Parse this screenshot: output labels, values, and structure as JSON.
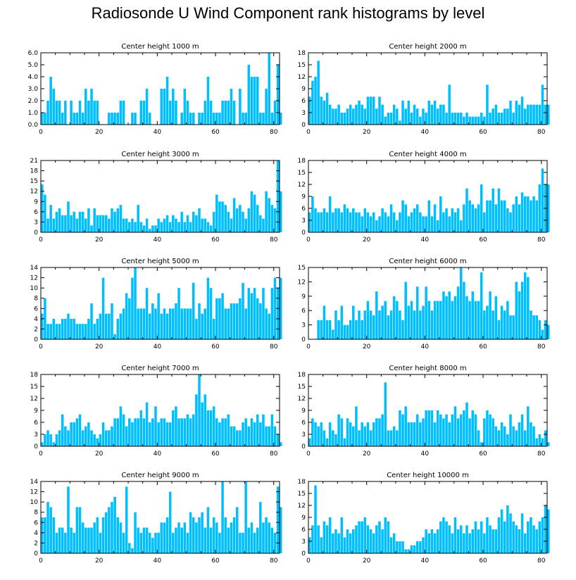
{
  "title": "Radiosonde U Wind Component rank histograms by level",
  "colors": {
    "bar": "#00BFFF",
    "bar_edge": "#FFFFFF",
    "axis": "#000000"
  },
  "chart_data": [
    {
      "type": "bar",
      "title": "Center height 1000 m",
      "x_start": 0,
      "xlim": [
        0,
        82
      ],
      "ylim": [
        0,
        6
      ],
      "xticks": [
        "0",
        "20",
        "40",
        "60",
        "80"
      ],
      "xtick_values": [
        0,
        20,
        40,
        60,
        80
      ],
      "yticks": [
        "0.0",
        "1.0",
        "2.0",
        "3.0",
        "4.0",
        "5.0",
        "6.0"
      ],
      "ytick_values": [
        0,
        1,
        2,
        3,
        4,
        5,
        6
      ],
      "values": [
        1,
        1,
        2,
        4,
        3,
        2,
        2,
        1,
        2,
        0,
        2,
        1,
        1,
        2,
        1,
        3,
        2,
        3,
        2,
        2,
        0,
        0,
        0,
        1,
        1,
        1,
        1,
        2,
        2,
        0,
        0,
        1,
        1,
        0,
        2,
        2,
        3,
        1,
        0,
        0,
        0,
        3,
        3,
        4,
        2,
        3,
        2,
        0,
        1,
        3,
        2,
        1,
        1,
        0,
        1,
        1,
        2,
        4,
        2,
        1,
        1,
        1,
        2,
        2,
        2,
        3,
        2,
        0,
        3,
        1,
        1,
        5,
        4,
        4,
        4,
        1,
        1,
        3,
        6,
        1,
        2,
        5,
        1
      ],
      "xlabel": "",
      "ylabel": ""
    },
    {
      "type": "bar",
      "title": "Center height 2000 m",
      "x_start": 0,
      "xlim": [
        0,
        82
      ],
      "ylim": [
        0,
        18
      ],
      "xticks": [
        "0",
        "20",
        "40",
        "60",
        "80"
      ],
      "xtick_values": [
        0,
        20,
        40,
        60,
        80
      ],
      "yticks": [
        "0",
        "3",
        "6",
        "9",
        "12",
        "15",
        "18"
      ],
      "ytick_values": [
        0,
        3,
        6,
        9,
        12,
        15,
        18
      ],
      "values": [
        7,
        11,
        12,
        16,
        7,
        6,
        8,
        5,
        4,
        4,
        5,
        3,
        3,
        4,
        5,
        4,
        5,
        6,
        5,
        4,
        7,
        7,
        7,
        4,
        7,
        5,
        2,
        3,
        3,
        5,
        4,
        1,
        6,
        4,
        6,
        3,
        5,
        4,
        2,
        4,
        3,
        6,
        5,
        6,
        4,
        5,
        5,
        3,
        10,
        3,
        3,
        3,
        3,
        2,
        3,
        2,
        2,
        2,
        2,
        3,
        2,
        10,
        3,
        4,
        5,
        3,
        3,
        4,
        4,
        6,
        3,
        6,
        5,
        7,
        4,
        5,
        5,
        5,
        5,
        5,
        10,
        5,
        5
      ],
      "xlabel": "",
      "ylabel": ""
    },
    {
      "type": "bar",
      "title": "Center height 3000 m",
      "x_start": 0,
      "xlim": [
        0,
        82
      ],
      "ylim": [
        0,
        21
      ],
      "xticks": [
        "0",
        "20",
        "40",
        "60",
        "80"
      ],
      "xtick_values": [
        0,
        20,
        40,
        60,
        80
      ],
      "yticks": [
        "0",
        "3",
        "6",
        "9",
        "12",
        "15",
        "18",
        "21"
      ],
      "ytick_values": [
        0,
        3,
        6,
        9,
        12,
        15,
        18,
        21
      ],
      "values": [
        14,
        11,
        4,
        8,
        4,
        6,
        7,
        5,
        5,
        9,
        5,
        6,
        4,
        6,
        6,
        4,
        7,
        2,
        7,
        5,
        5,
        5,
        5,
        4,
        7,
        6,
        7,
        8,
        4,
        4,
        3,
        4,
        3,
        8,
        3,
        2,
        4,
        1,
        2,
        2,
        4,
        3,
        4,
        5,
        3,
        5,
        4,
        3,
        6,
        3,
        5,
        3,
        6,
        5,
        7,
        4,
        4,
        3,
        2,
        6,
        11,
        9,
        9,
        8,
        6,
        4,
        10,
        7,
        8,
        6,
        4,
        7,
        12,
        11,
        8,
        5,
        4,
        12,
        10,
        8,
        7,
        21,
        12
      ],
      "xlabel": "",
      "ylabel": ""
    },
    {
      "type": "bar",
      "title": "Center height 4000 m",
      "x_start": 0,
      "xlim": [
        0,
        82
      ],
      "ylim": [
        0,
        18
      ],
      "xticks": [
        "0",
        "20",
        "40",
        "60",
        "80"
      ],
      "xtick_values": [
        0,
        20,
        40,
        60,
        80
      ],
      "yticks": [
        "0",
        "3",
        "6",
        "9",
        "12",
        "15",
        "18"
      ],
      "ytick_values": [
        0,
        3,
        6,
        9,
        12,
        15,
        18
      ],
      "values": [
        5,
        9,
        6,
        5,
        5,
        6,
        5,
        9,
        5,
        6,
        6,
        5,
        7,
        6,
        5,
        6,
        5,
        5,
        4,
        6,
        5,
        4,
        5,
        3,
        4,
        6,
        5,
        4,
        7,
        5,
        3,
        5,
        8,
        7,
        4,
        5,
        6,
        7,
        5,
        4,
        4,
        8,
        4,
        7,
        3,
        9,
        5,
        6,
        4,
        6,
        5,
        6,
        3,
        7,
        11,
        8,
        7,
        6,
        7,
        12,
        5,
        8,
        8,
        11,
        7,
        11,
        8,
        8,
        6,
        5,
        7,
        9,
        7,
        10,
        9,
        9,
        8,
        9,
        8,
        12,
        16,
        12,
        12
      ],
      "xlabel": "",
      "ylabel": ""
    },
    {
      "type": "bar",
      "title": "Center height 5000 m",
      "x_start": 0,
      "xlim": [
        0,
        82
      ],
      "ylim": [
        0,
        14
      ],
      "xticks": [
        "0",
        "20",
        "40",
        "60",
        "80"
      ],
      "xtick_values": [
        0,
        20,
        40,
        60,
        80
      ],
      "yticks": [
        "0",
        "2",
        "4",
        "6",
        "8",
        "10",
        "12",
        "14"
      ],
      "ytick_values": [
        0,
        2,
        4,
        6,
        8,
        10,
        12,
        14
      ],
      "values": [
        5,
        8,
        3,
        3,
        4,
        3,
        3,
        4,
        4,
        5,
        4,
        4,
        3,
        3,
        3,
        3,
        4,
        7,
        3,
        4,
        5,
        12,
        5,
        5,
        7,
        1,
        4,
        5,
        6,
        9,
        8,
        12,
        14,
        6,
        6,
        6,
        10,
        5,
        7,
        6,
        9,
        5,
        6,
        5,
        6,
        6,
        7,
        10,
        6,
        6,
        6,
        6,
        11,
        4,
        7,
        5,
        6,
        12,
        10,
        4,
        8,
        8,
        9,
        6,
        6,
        7,
        7,
        7,
        8,
        11,
        6,
        10,
        9,
        10,
        8,
        7,
        10,
        6,
        5,
        10,
        12,
        10,
        12
      ],
      "xlabel": "",
      "ylabel": ""
    },
    {
      "type": "bar",
      "title": "Center height 6000 m",
      "x_start": 0,
      "xlim": [
        0,
        82
      ],
      "ylim": [
        0,
        15
      ],
      "xticks": [
        "0",
        "20",
        "40",
        "60",
        "80"
      ],
      "xtick_values": [
        0,
        20,
        40,
        60,
        80
      ],
      "yticks": [
        "0",
        "3",
        "6",
        "9",
        "12",
        "15"
      ],
      "ytick_values": [
        0,
        3,
        6,
        9,
        12,
        15
      ],
      "values": [
        0,
        0,
        0,
        4,
        4,
        7,
        4,
        4,
        2,
        6,
        4,
        7,
        3,
        3,
        4,
        7,
        4,
        6,
        4,
        6,
        8,
        6,
        5,
        10,
        6,
        7,
        8,
        5,
        6,
        9,
        8,
        6,
        4,
        12,
        7,
        8,
        6,
        11,
        6,
        7,
        11,
        8,
        6,
        8,
        8,
        8,
        10,
        9,
        10,
        8,
        9,
        11,
        15,
        12,
        9,
        8,
        10,
        8,
        8,
        14,
        6,
        7,
        10,
        6,
        9,
        4,
        7,
        6,
        8,
        5,
        5,
        12,
        10,
        12,
        14,
        13,
        6,
        5,
        5,
        4,
        2,
        4,
        3
      ],
      "xlabel": "",
      "ylabel": ""
    },
    {
      "type": "bar",
      "title": "Center height 7000 m",
      "x_start": 0,
      "xlim": [
        0,
        82
      ],
      "ylim": [
        0,
        18
      ],
      "xticks": [
        "0",
        "20",
        "40",
        "60",
        "80"
      ],
      "xtick_values": [
        0,
        20,
        40,
        60,
        80
      ],
      "yticks": [
        "0",
        "3",
        "6",
        "9",
        "12",
        "15",
        "18"
      ],
      "ytick_values": [
        0,
        3,
        6,
        9,
        12,
        15,
        18
      ],
      "values": [
        1,
        3,
        4,
        3,
        1,
        3,
        4,
        8,
        5,
        4,
        6,
        6,
        7,
        8,
        4,
        5,
        6,
        4,
        3,
        2,
        3,
        6,
        4,
        4,
        5,
        7,
        7,
        10,
        8,
        5,
        7,
        6,
        7,
        7,
        9,
        7,
        11,
        6,
        7,
        10,
        6,
        7,
        7,
        6,
        6,
        9,
        10,
        7,
        7,
        7,
        8,
        7,
        8,
        13,
        18,
        11,
        13,
        9,
        9,
        10,
        7,
        6,
        7,
        7,
        8,
        5,
        5,
        4,
        4,
        6,
        7,
        5,
        7,
        6,
        8,
        6,
        8,
        5,
        5,
        8,
        5,
        3,
        1
      ],
      "xlabel": "",
      "ylabel": ""
    },
    {
      "type": "bar",
      "title": "Center height 8000 m",
      "x_start": 0,
      "xlim": [
        0,
        82
      ],
      "ylim": [
        0,
        18
      ],
      "xticks": [
        "0",
        "20",
        "40",
        "60",
        "80"
      ],
      "xtick_values": [
        0,
        20,
        40,
        60,
        80
      ],
      "yticks": [
        "0",
        "3",
        "6",
        "9",
        "12",
        "15",
        "18"
      ],
      "ytick_values": [
        0,
        3,
        6,
        9,
        12,
        15,
        18
      ],
      "values": [
        2,
        7,
        6,
        5,
        6,
        4,
        2,
        6,
        4,
        3,
        8,
        7,
        2,
        7,
        6,
        5,
        10,
        4,
        6,
        5,
        6,
        4,
        6,
        7,
        7,
        8,
        16,
        4,
        4,
        5,
        4,
        9,
        8,
        10,
        6,
        6,
        6,
        8,
        6,
        7,
        9,
        9,
        9,
        6,
        9,
        8,
        7,
        8,
        6,
        8,
        10,
        7,
        8,
        9,
        11,
        7,
        9,
        8,
        4,
        1,
        7,
        9,
        8,
        7,
        5,
        4,
        6,
        5,
        3,
        8,
        5,
        4,
        6,
        8,
        4,
        10,
        6,
        5,
        2,
        3,
        2,
        4,
        1
      ],
      "xlabel": "",
      "ylabel": ""
    },
    {
      "type": "bar",
      "title": "Center height 9000 m",
      "x_start": 0,
      "xlim": [
        0,
        82
      ],
      "ylim": [
        0,
        14
      ],
      "xticks": [
        "0",
        "20",
        "40",
        "60",
        "80"
      ],
      "xtick_values": [
        0,
        20,
        40,
        60,
        80
      ],
      "yticks": [
        "0",
        "2",
        "4",
        "6",
        "8",
        "10",
        "12",
        "14"
      ],
      "ytick_values": [
        0,
        2,
        4,
        6,
        8,
        10,
        12,
        14
      ],
      "values": [
        7,
        7,
        10,
        9,
        7,
        4,
        5,
        5,
        4,
        13,
        5,
        4,
        9,
        9,
        6,
        5,
        5,
        5,
        6,
        7,
        4,
        7,
        8,
        9,
        10,
        11,
        7,
        6,
        4,
        13,
        2,
        1,
        8,
        5,
        4,
        5,
        5,
        4,
        3,
        4,
        4,
        6,
        6,
        7,
        12,
        4,
        5,
        6,
        5,
        6,
        4,
        8,
        7,
        6,
        7,
        8,
        5,
        9,
        5,
        7,
        6,
        4,
        14,
        7,
        5,
        6,
        7,
        9,
        4,
        4,
        14,
        5,
        6,
        4,
        5,
        10,
        6,
        7,
        6,
        5,
        4,
        13,
        9
      ],
      "xlabel": "",
      "ylabel": ""
    },
    {
      "type": "bar",
      "title": "Center height 10000 m",
      "x_start": 0,
      "xlim": [
        0,
        82
      ],
      "ylim": [
        0,
        18
      ],
      "xticks": [
        "0",
        "20",
        "40",
        "60",
        "80"
      ],
      "xtick_values": [
        0,
        20,
        40,
        60,
        80
      ],
      "yticks": [
        "0",
        "3",
        "6",
        "9",
        "12",
        "15",
        "18"
      ],
      "ytick_values": [
        0,
        3,
        6,
        9,
        12,
        15,
        18
      ],
      "values": [
        4,
        7,
        17,
        7,
        4,
        8,
        7,
        9,
        5,
        6,
        5,
        9,
        4,
        6,
        5,
        6,
        7,
        8,
        8,
        9,
        7,
        6,
        5,
        7,
        8,
        6,
        9,
        8,
        4,
        5,
        3,
        3,
        3,
        1,
        1,
        2,
        2,
        3,
        3,
        4,
        6,
        5,
        6,
        5,
        6,
        8,
        9,
        8,
        7,
        5,
        9,
        6,
        7,
        5,
        7,
        5,
        6,
        8,
        6,
        8,
        5,
        9,
        7,
        6,
        6,
        9,
        11,
        8,
        12,
        10,
        8,
        7,
        6,
        10,
        5,
        8,
        9,
        7,
        6,
        8,
        9,
        12,
        11
      ],
      "xlabel": "",
      "ylabel": ""
    }
  ]
}
